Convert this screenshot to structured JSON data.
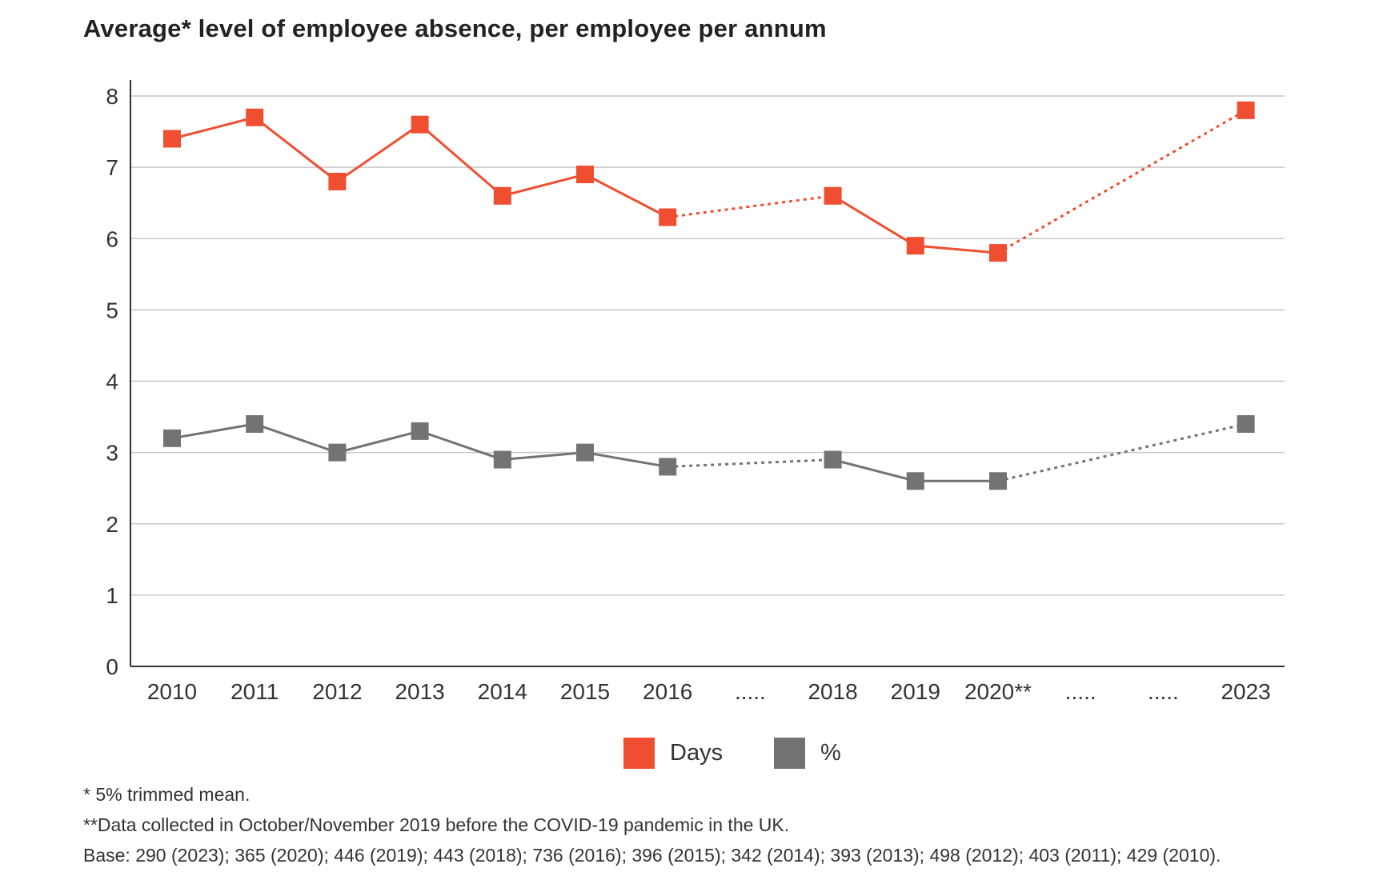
{
  "chart_data": {
    "type": "line",
    "title": "Average* level of employee absence, per employee per annum",
    "categories": [
      "2010",
      "2011",
      "2012",
      "2013",
      "2014",
      "2015",
      "2016",
      ".....",
      "2018",
      "2019",
      "2020**",
      ".....",
      ".....",
      "2023"
    ],
    "ylim": [
      0,
      8
    ],
    "yticks": [
      0,
      1,
      2,
      3,
      4,
      5,
      6,
      7,
      8
    ],
    "grid": true,
    "legend_position": "bottom-center",
    "series": [
      {
        "name": "Days",
        "color": "#f04e30",
        "values": [
          7.4,
          7.7,
          6.8,
          7.6,
          6.6,
          6.9,
          6.3,
          null,
          6.6,
          5.9,
          5.8,
          null,
          null,
          7.8
        ]
      },
      {
        "name": "%",
        "color": "#737373",
        "values": [
          3.2,
          3.4,
          3.0,
          3.3,
          2.9,
          3.0,
          2.8,
          null,
          2.9,
          2.6,
          2.6,
          null,
          null,
          3.4
        ]
      }
    ],
    "dotted_gaps": [
      [
        6,
        8
      ],
      [
        10,
        13
      ]
    ]
  },
  "notes": [
    "* 5% trimmed mean.",
    "**Data collected in October/November 2019 before the COVID-19 pandemic in the UK.",
    "Base: 290 (2023); 365 (2020); 446 (2019); 443 (2018); 736 (2016); 396 (2015); 342 (2014); 393 (2013); 498 (2012); 403 (2011); 429 (2010)."
  ]
}
